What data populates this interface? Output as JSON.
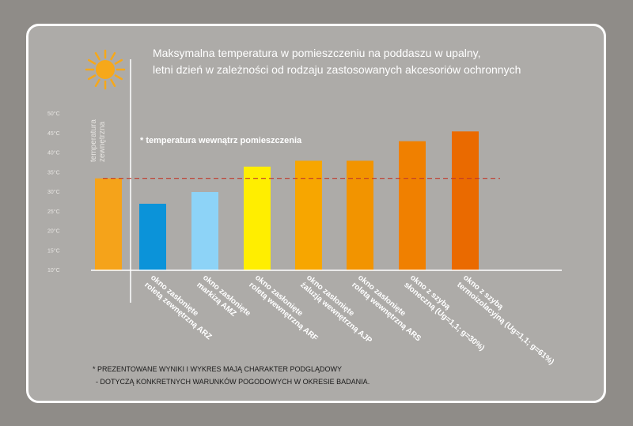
{
  "chart_data": {
    "type": "bar",
    "title_lines": [
      "Maksymalna temperatura w pomieszczeniu na poddaszu w upalny,",
      "letni dzień w zależności od rodzaju zastosowanych akcesoriów ochronnych"
    ],
    "ylabel_lines": [
      "temperatura",
      "zewnętrzna"
    ],
    "ylim": [
      10,
      50
    ],
    "yticks": [
      "10°C",
      "15°C",
      "20°C",
      "25°C",
      "30°C",
      "35°C",
      "40°C",
      "45°C",
      "50°C"
    ],
    "ytick_values": [
      10,
      15,
      20,
      25,
      30,
      35,
      40,
      45,
      50
    ],
    "reference_line": {
      "value": 33.5,
      "color": "#c0392b"
    },
    "annotation": "* temperatura wewnątrz pomieszczenia",
    "bars": [
      {
        "label_lines": [],
        "value": 33.5,
        "color": "#f5a31a"
      },
      {
        "label_lines": [
          "okno zasłonięte",
          "roletą zewnętrzną ARZ"
        ],
        "value": 27,
        "color": "#0b93d9"
      },
      {
        "label_lines": [
          "okno zasłonięte",
          "markizą AMZ"
        ],
        "value": 30,
        "color": "#8dd3f7"
      },
      {
        "label_lines": [
          "okno zasłonięte",
          "roletą wewnętrzną ARF"
        ],
        "value": 36.5,
        "color": "#ffee00"
      },
      {
        "label_lines": [
          "okno zasłonięte",
          "żaluzją wewnętrzną AJP"
        ],
        "value": 38,
        "color": "#f7a600"
      },
      {
        "label_lines": [
          "okno zasłonięte",
          "roletą wewnętrzną ARS"
        ],
        "value": 38,
        "color": "#f29400"
      },
      {
        "label_lines": [
          "okno z szybą",
          "słoneczną (Ug=1,1; g=30%)"
        ],
        "value": 43,
        "color": "#f08000"
      },
      {
        "label_lines": [
          "okno z szybą",
          "termoizolacyjną (Ug=1,1; g=61%)"
        ],
        "value": 45.5,
        "color": "#ea6a00"
      }
    ],
    "footnotes": [
      "* PREZENTOWANE WYNIKI I WYKRES MAJĄ CHARAKTER PODGLĄDOWY",
      "- DOTYCZĄ KONKRETNYCH WARUNKÓW POGODOWYCH W OKRESIE BADANIA."
    ],
    "sun_icon": "sun-icon",
    "sun_color": "#f6a81a"
  }
}
